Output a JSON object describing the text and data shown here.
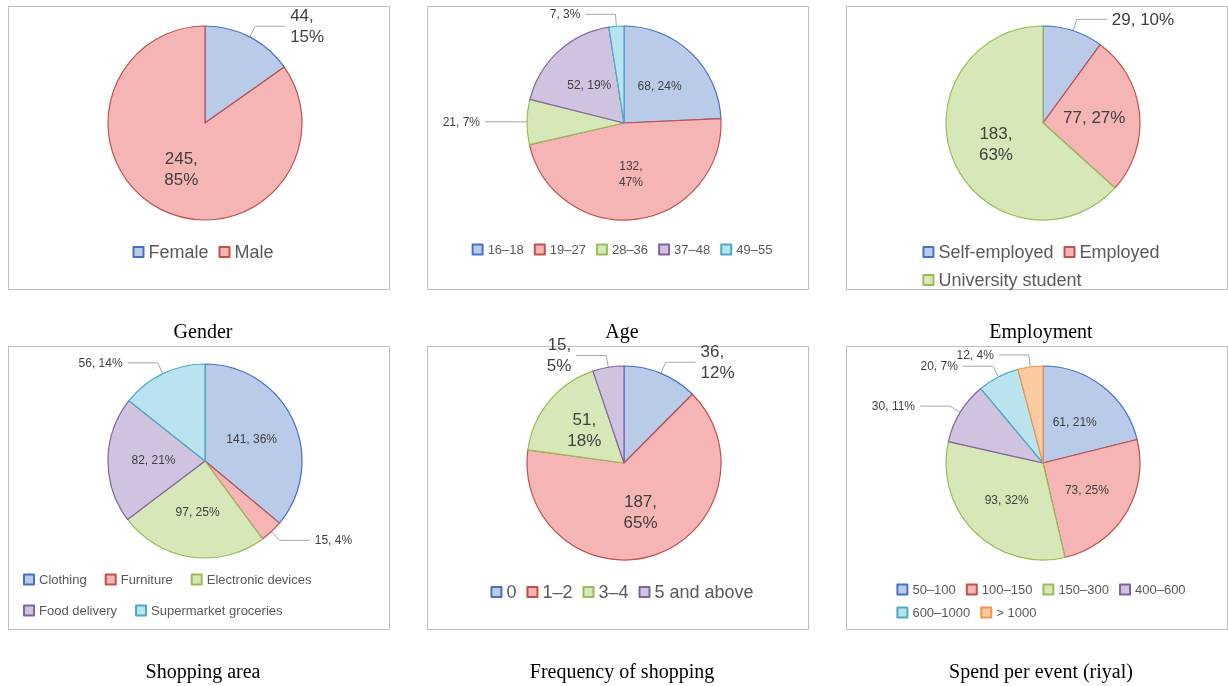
{
  "chart_data": [
    {
      "type": "pie",
      "title": "Gender",
      "categories": [
        "Female",
        "Male"
      ],
      "values": [
        44,
        245
      ],
      "value_labels": [
        "44,\n15%",
        "245,\n85%"
      ],
      "colors": [
        "#b9cbe9",
        "#f5b5b5"
      ],
      "legend": "bottom"
    },
    {
      "type": "pie",
      "title": "Age",
      "categories": [
        "16–18",
        "19–27",
        "28–36",
        "37–48",
        "49–55"
      ],
      "values": [
        68,
        132,
        21,
        52,
        7
      ],
      "value_labels": [
        "68, 24%",
        "132,\n47%",
        "21, 7%",
        "52, 19%",
        "7, 3%"
      ],
      "colors": [
        "#b9cbe9",
        "#f5b5b5",
        "#d6e8b8",
        "#cfc3e0",
        "#b8e3ef"
      ],
      "legend": "bottom"
    },
    {
      "type": "pie",
      "title": "Employment",
      "categories": [
        "Self-employed",
        "Employed",
        "University student"
      ],
      "values": [
        29,
        77,
        183
      ],
      "value_labels": [
        "29, 10%",
        "77, 27%",
        "183,\n63%"
      ],
      "colors": [
        "#b9cbe9",
        "#f5b5b5",
        "#d6e8b8"
      ],
      "legend": "bottom"
    },
    {
      "type": "pie",
      "title": "Shopping area",
      "categories": [
        "Clothing",
        "Furniture",
        "Electronic devices",
        "Food delivery",
        "Supermarket groceries"
      ],
      "values": [
        141,
        15,
        97,
        82,
        56
      ],
      "value_labels": [
        "141, 36%",
        "15, 4%",
        "97, 25%",
        "82, 21%",
        "56, 14%"
      ],
      "colors": [
        "#b9cbe9",
        "#f5b5b5",
        "#d6e8b8",
        "#cfc3e0",
        "#b8e3ef"
      ],
      "legend": "bottom left"
    },
    {
      "type": "pie",
      "title": "Frequency of shopping",
      "categories": [
        "0",
        "1–2",
        "3–4",
        "5 and above"
      ],
      "values": [
        36,
        187,
        51,
        15
      ],
      "value_labels": [
        "36,\n12%",
        "187,\n65%",
        "51,\n18%",
        "15,\n5%"
      ],
      "colors": [
        "#b9cbe9",
        "#f5b5b5",
        "#d6e8b8",
        "#cfc3e0"
      ],
      "legend": "bottom"
    },
    {
      "type": "pie",
      "title": "Spend per event (riyal)",
      "categories": [
        "50–100",
        "100–150",
        "150–300",
        "400–600",
        "600–1000",
        "> 1000"
      ],
      "values": [
        61,
        73,
        93,
        30,
        20,
        12
      ],
      "value_labels": [
        "61, 21%",
        "73, 25%",
        "93, 32%",
        "30, 11%",
        "20, 7%",
        "12, 4%"
      ],
      "colors": [
        "#b9cbe9",
        "#f5b5b5",
        "#d6e8b8",
        "#cfc3e0",
        "#b8e3ef",
        "#fbcaa0"
      ],
      "legend": "bottom"
    }
  ]
}
